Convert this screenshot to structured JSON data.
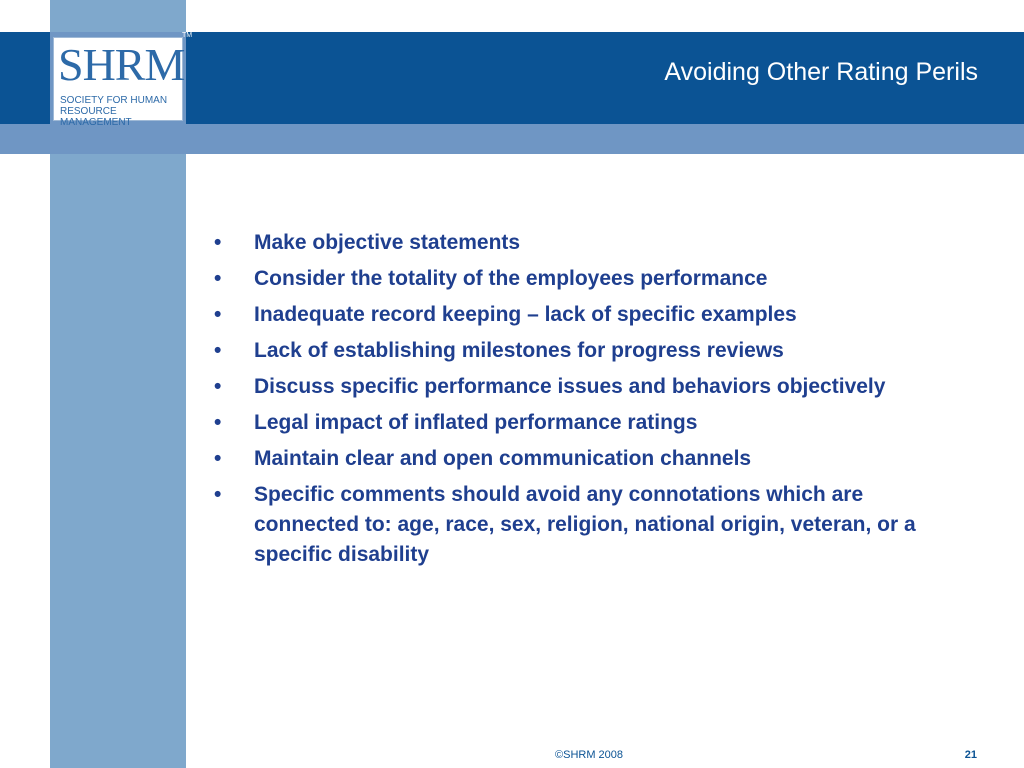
{
  "logo": {
    "mark": "SHRM",
    "tm": "TM",
    "tagline": "Society for Human Resource Management"
  },
  "slide": {
    "title": "Avoiding Other Rating Perils",
    "bullet_symbol": "•",
    "bullets": [
      "Make objective statements",
      "Consider the totality of the employees performance",
      "Inadequate record keeping – lack of specific examples",
      "Lack of establishing milestones for progress reviews",
      "Discuss specific performance issues and behaviors objectively",
      "Legal impact of inflated performance ratings",
      "Maintain clear and open communication channels",
      "Specific comments should avoid any connotations which are connected to: age, race, sex, religion, national origin, veteran, or a specific disability"
    ]
  },
  "footer": {
    "copyright": "©SHRM 2008",
    "page_number": "21"
  },
  "colors": {
    "header_band": "#0b5394",
    "sub_band": "#6f96c4",
    "left_strip": "#7fa8cc",
    "bullet_text": "#1f3f8f"
  }
}
